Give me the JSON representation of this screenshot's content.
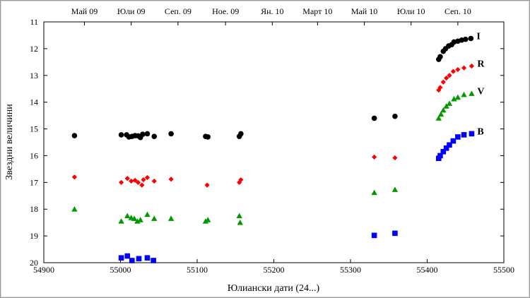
{
  "chart_data": {
    "type": "scatter",
    "xlabel": "Юлиански дати (24...)",
    "ylabel": "Звездни величини",
    "xlim": [
      54900,
      55500
    ],
    "ylim": [
      11,
      20
    ],
    "y_inverted": true,
    "grid": false,
    "x_ticks": [
      54900,
      55000,
      55100,
      55200,
      55300,
      55400,
      55500
    ],
    "y_ticks": [
      11,
      12,
      13,
      14,
      15,
      16,
      17,
      18,
      19,
      20
    ],
    "top_axis_labels": [
      {
        "text": "Май 09",
        "x": 54953
      },
      {
        "text": "Юли 09",
        "x": 55014
      },
      {
        "text": "Сеп. 09",
        "x": 55075
      },
      {
        "text": "Ное. 09",
        "x": 55137
      },
      {
        "text": "Ян. 10",
        "x": 55198
      },
      {
        "text": "Март 10",
        "x": 55257
      },
      {
        "text": "Май 10",
        "x": 55318
      },
      {
        "text": "Юли 10",
        "x": 55379
      },
      {
        "text": "Сеп. 10",
        "x": 55440
      }
    ],
    "series": [
      {
        "name": "I",
        "color": "#000000",
        "marker": "circle",
        "points": [
          [
            54940,
            15.25
          ],
          [
            55001,
            15.22
          ],
          [
            55008,
            15.22
          ],
          [
            55011,
            15.3
          ],
          [
            55015,
            15.28
          ],
          [
            55019,
            15.25
          ],
          [
            55023,
            15.26
          ],
          [
            55026,
            15.32
          ],
          [
            55029,
            15.2
          ],
          [
            55035,
            15.18
          ],
          [
            55044,
            15.28
          ],
          [
            55066,
            15.18
          ],
          [
            55111,
            15.28
          ],
          [
            55114,
            15.3
          ],
          [
            55155,
            15.28
          ],
          [
            55157,
            15.18
          ],
          [
            55331,
            14.6
          ],
          [
            55358,
            14.53
          ],
          [
            55415,
            12.4
          ],
          [
            55417,
            12.3
          ],
          [
            55421,
            12.1
          ],
          [
            55424,
            12.0
          ],
          [
            55428,
            11.9
          ],
          [
            55432,
            11.85
          ],
          [
            55435,
            11.75
          ],
          [
            55440,
            11.72
          ],
          [
            55445,
            11.68
          ],
          [
            55450,
            11.65
          ],
          [
            55457,
            11.62
          ]
        ]
      },
      {
        "name": "R",
        "color": "#ff0000",
        "marker": "diamond",
        "points": [
          [
            54940,
            16.8
          ],
          [
            55001,
            17.0
          ],
          [
            55009,
            16.85
          ],
          [
            55014,
            16.95
          ],
          [
            55019,
            16.92
          ],
          [
            55023,
            17.0
          ],
          [
            55028,
            17.1
          ],
          [
            55030,
            16.9
          ],
          [
            55035,
            16.82
          ],
          [
            55044,
            16.95
          ],
          [
            55066,
            16.88
          ],
          [
            55113,
            17.1
          ],
          [
            55155,
            17.0
          ],
          [
            55157,
            16.9
          ],
          [
            55331,
            16.05
          ],
          [
            55358,
            16.08
          ],
          [
            55415,
            13.55
          ],
          [
            55417,
            13.45
          ],
          [
            55421,
            13.25
          ],
          [
            55425,
            13.1
          ],
          [
            55429,
            13.0
          ],
          [
            55434,
            12.85
          ],
          [
            55440,
            12.78
          ],
          [
            55448,
            12.72
          ],
          [
            55458,
            12.65
          ]
        ]
      },
      {
        "name": "V",
        "color": "#009900",
        "marker": "triangle",
        "points": [
          [
            54940,
            18.0
          ],
          [
            55001,
            18.45
          ],
          [
            55009,
            18.25
          ],
          [
            55014,
            18.32
          ],
          [
            55018,
            18.35
          ],
          [
            55022,
            18.45
          ],
          [
            55026,
            18.4
          ],
          [
            55035,
            18.2
          ],
          [
            55044,
            18.35
          ],
          [
            55066,
            18.35
          ],
          [
            55111,
            18.45
          ],
          [
            55114,
            18.4
          ],
          [
            55155,
            18.25
          ],
          [
            55156,
            18.5
          ],
          [
            55331,
            17.38
          ],
          [
            55358,
            17.27
          ],
          [
            55415,
            14.6
          ],
          [
            55418,
            14.45
          ],
          [
            55421,
            14.3
          ],
          [
            55425,
            14.15
          ],
          [
            55429,
            14.05
          ],
          [
            55435,
            13.88
          ],
          [
            55440,
            13.82
          ],
          [
            55448,
            13.72
          ],
          [
            55458,
            13.68
          ]
        ]
      },
      {
        "name": "B",
        "color": "#0000ff",
        "marker": "square",
        "points": [
          [
            55001,
            19.82
          ],
          [
            55009,
            19.75
          ],
          [
            55015,
            19.92
          ],
          [
            55024,
            19.85
          ],
          [
            55035,
            19.82
          ],
          [
            55043,
            19.92
          ],
          [
            55331,
            18.98
          ],
          [
            55358,
            18.9
          ],
          [
            55415,
            16.1
          ],
          [
            55417,
            16.0
          ],
          [
            55421,
            15.85
          ],
          [
            55425,
            15.72
          ],
          [
            55429,
            15.6
          ],
          [
            55434,
            15.45
          ],
          [
            55440,
            15.3
          ],
          [
            55448,
            15.22
          ],
          [
            55458,
            15.18
          ]
        ]
      }
    ]
  }
}
